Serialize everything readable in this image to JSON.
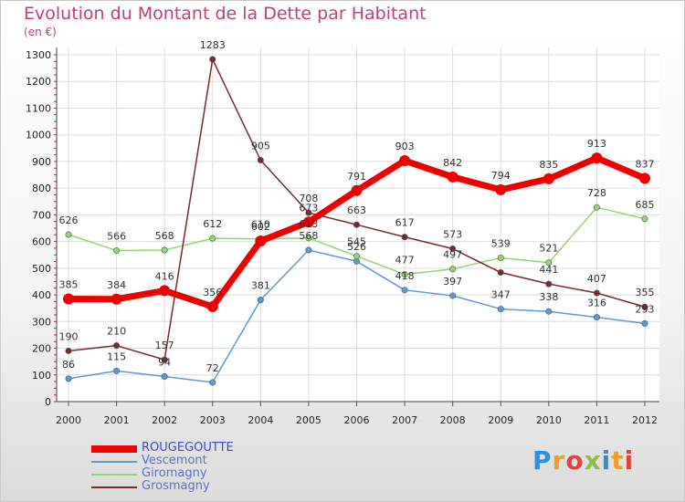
{
  "chart_data": {
    "type": "line",
    "title": "Evolution du Montant de la Dette par Habitant",
    "ylabel": "(en €)",
    "xlabel": "",
    "ylim": [
      0,
      1300
    ],
    "yticks": [
      "0",
      "100",
      "200",
      "300",
      "400",
      "500",
      "600",
      "700",
      "800",
      "900",
      "1000",
      "1100",
      "1200",
      "1300"
    ],
    "x": [
      "2000",
      "2001",
      "2002",
      "2003",
      "2004",
      "2005",
      "2006",
      "2007",
      "2008",
      "2009",
      "2010",
      "2011",
      "2012"
    ],
    "series": [
      {
        "name": "ROUGEGOUTTE",
        "color": "#ee0000",
        "values": [
          385,
          384,
          416,
          356,
          602,
          673,
          791,
          903,
          842,
          794,
          835,
          913,
          837
        ]
      },
      {
        "name": "Vescemont",
        "color": "#5b9bd5",
        "values": [
          86,
          115,
          94,
          72,
          381,
          568,
          526,
          418,
          397,
          347,
          338,
          316,
          293
        ]
      },
      {
        "name": "Giromagny",
        "color": "#90d870",
        "values": [
          626,
          566,
          568,
          612,
          610,
          613,
          545,
          477,
          497,
          539,
          521,
          728,
          685
        ]
      },
      {
        "name": "Grosmagny",
        "color": "#7a2a2a",
        "values": [
          190,
          210,
          157,
          1283,
          905,
          708,
          663,
          617,
          573,
          484,
          441,
          407,
          355
        ]
      }
    ],
    "value_labels": {
      "ROUGEGOUTTE": [
        "385",
        "384",
        "416",
        "356",
        "602",
        "673",
        "791",
        "903",
        "842",
        "794",
        "835",
        "913",
        "837"
      ],
      "Vescemont": [
        "86",
        "115",
        "94",
        "72",
        "381",
        "568",
        "526",
        "418",
        "397",
        "347",
        "338",
        "316",
        "293"
      ],
      "Giromagny": [
        "626",
        "566",
        "568",
        "612",
        "610",
        "613",
        "545",
        "477",
        "497",
        "539",
        "521",
        "728",
        "685"
      ],
      "Grosmagny": [
        "190",
        "210",
        "157",
        "1283",
        "905",
        "708",
        "663",
        "617",
        "573",
        "",
        "441",
        "407",
        "355"
      ]
    },
    "grid": true,
    "legend": "bottom-left"
  },
  "branding": {
    "logo_text": "Proxiti"
  }
}
